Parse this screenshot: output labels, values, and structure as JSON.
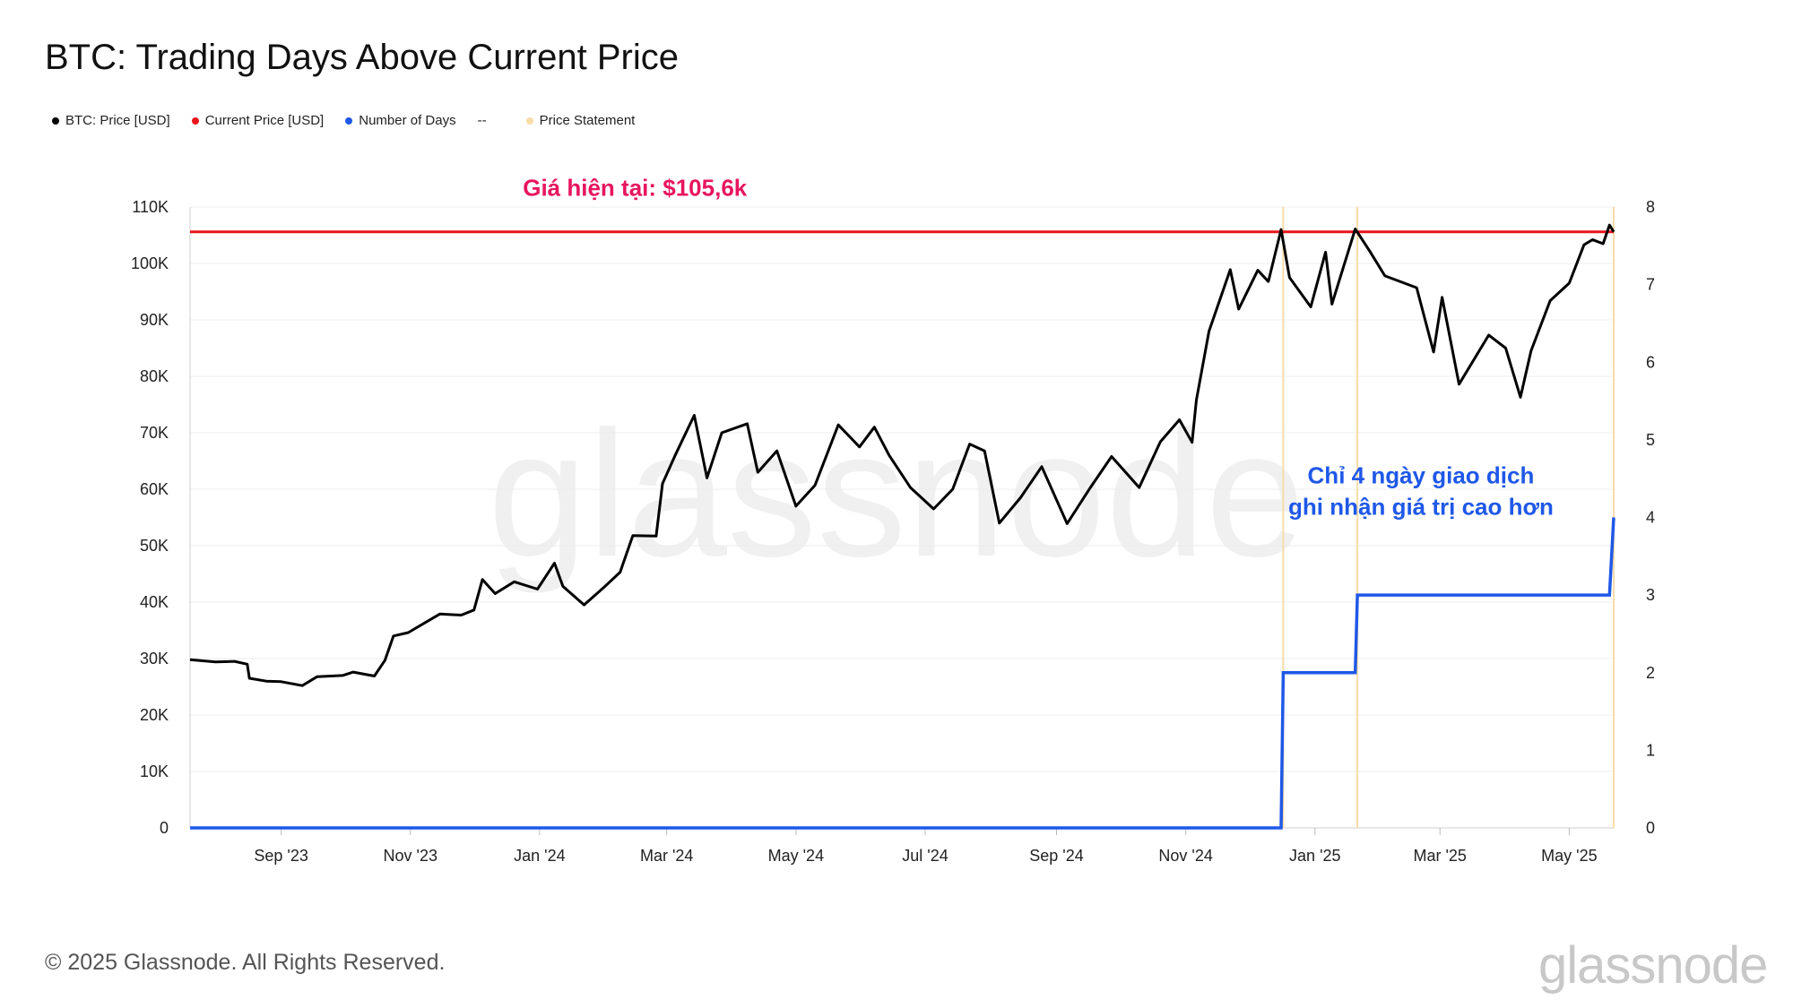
{
  "title": "BTC: Trading Days Above Current Price",
  "legend": [
    {
      "label": "BTC: Price [USD]",
      "color": "#000000"
    },
    {
      "label": "Current Price [USD]",
      "color": "#e8151b"
    },
    {
      "label": "Number of Days",
      "color": "#1f58e8"
    },
    {
      "label": "--",
      "color": ""
    },
    {
      "label": "Price Statement",
      "color": "#f8dca8"
    }
  ],
  "footer": "© 2025 Glassnode. All Rights Reserved.",
  "brand": "glassnode",
  "chart_data": {
    "type": "line",
    "title": "BTC: Trading Days Above Current Price",
    "x_ticks": [
      "Sep '23",
      "Nov '23",
      "Jan '24",
      "Mar '24",
      "May '24",
      "Jul '24",
      "Sep '24",
      "Nov '24",
      "Jan '25",
      "Mar '25",
      "May '25"
    ],
    "x_tick_dates": [
      "2023-09-01",
      "2023-11-01",
      "2024-01-01",
      "2024-03-01",
      "2024-05-01",
      "2024-07-01",
      "2024-09-01",
      "2024-11-01",
      "2025-01-01",
      "2025-03-01",
      "2025-05-01"
    ],
    "x_range": [
      "2023-07-20",
      "2025-05-22"
    ],
    "y_left": {
      "range": [
        0,
        110000
      ],
      "ticks": [
        "0",
        "10K",
        "20K",
        "30K",
        "40K",
        "50K",
        "60K",
        "70K",
        "80K",
        "90K",
        "100K",
        "110K"
      ]
    },
    "y_right": {
      "range": [
        0,
        8
      ],
      "ticks": [
        "0",
        "1",
        "2",
        "3",
        "4",
        "5",
        "6",
        "7",
        "8"
      ]
    },
    "grid": true,
    "series": [
      {
        "name": "BTC: Price [USD]",
        "axis": "left",
        "color": "#000000",
        "points": [
          [
            "2023-07-20",
            29800
          ],
          [
            "2023-08-01",
            29400
          ],
          [
            "2023-08-10",
            29500
          ],
          [
            "2023-08-16",
            29000
          ],
          [
            "2023-08-17",
            26500
          ],
          [
            "2023-08-25",
            26000
          ],
          [
            "2023-09-01",
            25900
          ],
          [
            "2023-09-11",
            25200
          ],
          [
            "2023-09-18",
            26800
          ],
          [
            "2023-09-30",
            27000
          ],
          [
            "2023-10-05",
            27600
          ],
          [
            "2023-10-15",
            26900
          ],
          [
            "2023-10-20",
            29700
          ],
          [
            "2023-10-24",
            34000
          ],
          [
            "2023-10-31",
            34600
          ],
          [
            "2023-11-09",
            36600
          ],
          [
            "2023-11-15",
            37900
          ],
          [
            "2023-11-25",
            37700
          ],
          [
            "2023-12-01",
            38600
          ],
          [
            "2023-12-05",
            44000
          ],
          [
            "2023-12-11",
            41500
          ],
          [
            "2023-12-20",
            43600
          ],
          [
            "2023-12-31",
            42300
          ],
          [
            "2024-01-08",
            46900
          ],
          [
            "2024-01-12",
            42800
          ],
          [
            "2024-01-22",
            39500
          ],
          [
            "2024-01-31",
            42500
          ],
          [
            "2024-02-08",
            45300
          ],
          [
            "2024-02-14",
            51800
          ],
          [
            "2024-02-25",
            51700
          ],
          [
            "2024-02-28",
            61000
          ],
          [
            "2024-03-05",
            66000
          ],
          [
            "2024-03-14",
            73100
          ],
          [
            "2024-03-20",
            62000
          ],
          [
            "2024-03-27",
            70000
          ],
          [
            "2024-04-08",
            71600
          ],
          [
            "2024-04-13",
            63000
          ],
          [
            "2024-04-22",
            66800
          ],
          [
            "2024-05-01",
            57000
          ],
          [
            "2024-05-10",
            60700
          ],
          [
            "2024-05-21",
            71400
          ],
          [
            "2024-05-31",
            67500
          ],
          [
            "2024-06-07",
            71000
          ],
          [
            "2024-06-14",
            66000
          ],
          [
            "2024-06-24",
            60300
          ],
          [
            "2024-07-05",
            56500
          ],
          [
            "2024-07-14",
            60000
          ],
          [
            "2024-07-22",
            68000
          ],
          [
            "2024-07-29",
            66800
          ],
          [
            "2024-08-05",
            54000
          ],
          [
            "2024-08-15",
            58500
          ],
          [
            "2024-08-25",
            64000
          ],
          [
            "2024-09-06",
            53900
          ],
          [
            "2024-09-17",
            60300
          ],
          [
            "2024-09-27",
            65800
          ],
          [
            "2024-10-10",
            60300
          ],
          [
            "2024-10-20",
            68400
          ],
          [
            "2024-10-29",
            72300
          ],
          [
            "2024-11-04",
            68300
          ],
          [
            "2024-11-06",
            75800
          ],
          [
            "2024-11-12",
            88000
          ],
          [
            "2024-11-22",
            98900
          ],
          [
            "2024-11-26",
            91900
          ],
          [
            "2024-12-05",
            98800
          ],
          [
            "2024-12-10",
            96800
          ],
          [
            "2024-12-16",
            106000
          ],
          [
            "2024-12-20",
            97500
          ],
          [
            "2024-12-30",
            92300
          ],
          [
            "2025-01-06",
            102000
          ],
          [
            "2025-01-09",
            92800
          ],
          [
            "2025-01-20",
            106100
          ],
          [
            "2025-01-27",
            102100
          ],
          [
            "2025-02-03",
            97800
          ],
          [
            "2025-02-18",
            95700
          ],
          [
            "2025-02-26",
            84300
          ],
          [
            "2025-03-02",
            94000
          ],
          [
            "2025-03-10",
            78600
          ],
          [
            "2025-03-24",
            87300
          ],
          [
            "2025-04-01",
            85000
          ],
          [
            "2025-04-08",
            76300
          ],
          [
            "2025-04-13",
            84500
          ],
          [
            "2025-04-22",
            93400
          ],
          [
            "2025-05-01",
            96500
          ],
          [
            "2025-05-08",
            103300
          ],
          [
            "2025-05-12",
            104200
          ],
          [
            "2025-05-17",
            103500
          ],
          [
            "2025-05-20",
            106800
          ],
          [
            "2025-05-22",
            105600
          ]
        ]
      },
      {
        "name": "Current Price [USD]",
        "axis": "left",
        "color": "#e8151b",
        "value": 105600
      },
      {
        "name": "Number of Days",
        "axis": "right",
        "color": "#1f58e8",
        "points": [
          [
            "2023-07-20",
            0
          ],
          [
            "2024-12-16",
            0
          ],
          [
            "2024-12-17",
            2
          ],
          [
            "2025-01-20",
            2
          ],
          [
            "2025-01-21",
            3
          ],
          [
            "2025-05-20",
            3
          ],
          [
            "2025-05-22",
            4
          ]
        ]
      },
      {
        "name": "Price Statement",
        "color": "#f8dca8",
        "markers": [
          "2024-12-17",
          "2025-01-21",
          "2025-05-22"
        ]
      }
    ],
    "annotations": [
      {
        "text": "Giá hiện tại: $105,6k",
        "color": "#e8155f",
        "date": "2024-02-15",
        "value": 112000
      },
      {
        "text": "Chỉ 4 ngày giao dịch",
        "color": "#1f58e8",
        "date": "2025-02-20",
        "value": 61000
      },
      {
        "text": "ghi nhận giá trị cao hơn",
        "color": "#1f58e8",
        "date": "2025-02-20",
        "value": 55500
      }
    ]
  }
}
